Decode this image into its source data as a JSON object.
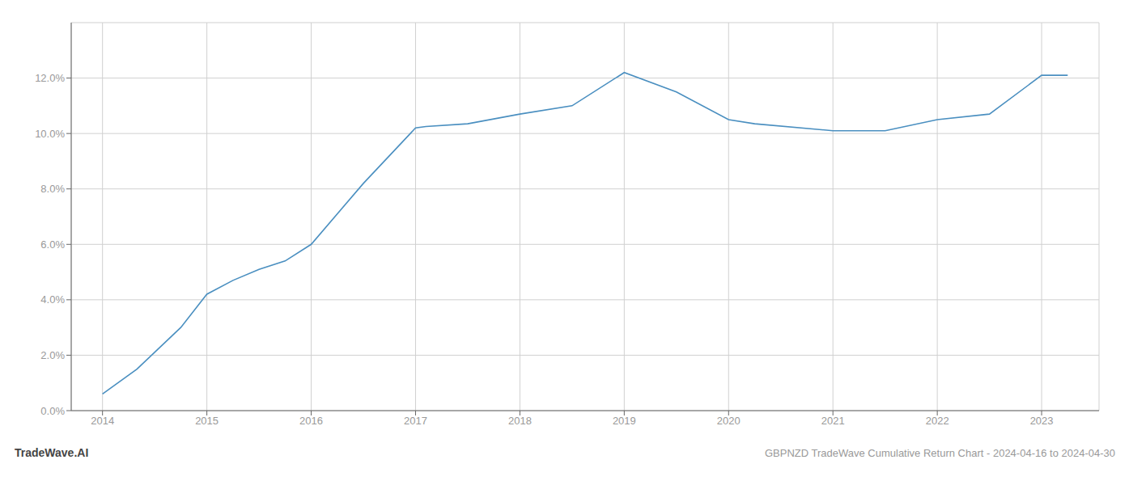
{
  "chart_data": {
    "type": "line",
    "title": "GBPNZD TradeWave Cumulative Return Chart - 2024-04-16 to 2024-04-30",
    "annotations": [
      "TradeWave.AI"
    ],
    "x": [
      2014,
      2014.33,
      2014.75,
      2015,
      2015.25,
      2015.5,
      2015.75,
      2016,
      2016.5,
      2017,
      2017.1,
      2017.5,
      2018,
      2018.5,
      2019,
      2019.5,
      2020,
      2020.25,
      2021,
      2021.5,
      2022,
      2022.5,
      2023,
      2023.25
    ],
    "values": [
      0.006,
      0.015,
      0.03,
      0.042,
      0.047,
      0.051,
      0.054,
      0.06,
      0.082,
      0.102,
      0.1025,
      0.1035,
      0.107,
      0.11,
      0.122,
      0.115,
      0.105,
      0.1035,
      0.101,
      0.101,
      0.105,
      0.107,
      0.121,
      0.121
    ],
    "color": "#4a8fc0",
    "xlim": [
      2013.7,
      2023.55
    ],
    "ylim": [
      0.0,
      0.14
    ],
    "xticks": [
      2014,
      2015,
      2016,
      2017,
      2018,
      2019,
      2020,
      2021,
      2022,
      2023
    ],
    "yticks": [
      {
        "value": 0.0,
        "label": "0.0%"
      },
      {
        "value": 0.02,
        "label": "2.0%"
      },
      {
        "value": 0.04,
        "label": "4.0%"
      },
      {
        "value": 0.06,
        "label": "6.0%"
      },
      {
        "value": 0.08,
        "label": "8.0%"
      },
      {
        "value": 0.1,
        "label": "10.0%"
      },
      {
        "value": 0.12,
        "label": "12.0%"
      }
    ],
    "grid": true
  }
}
